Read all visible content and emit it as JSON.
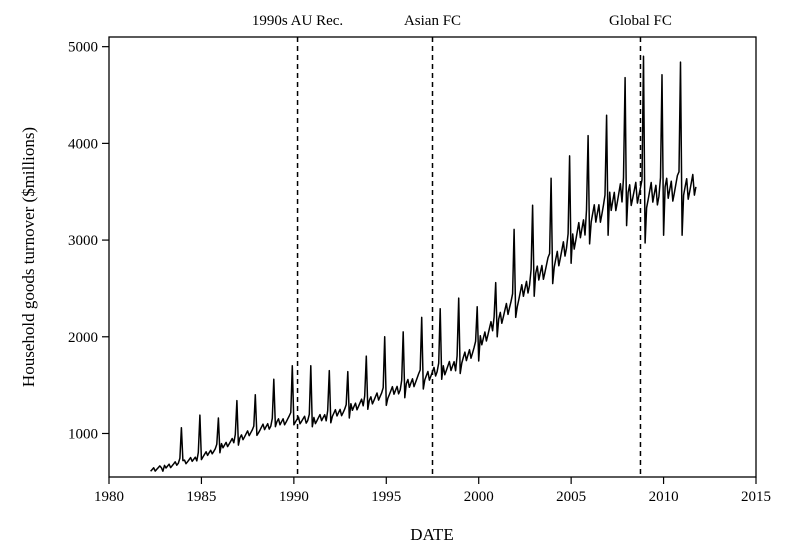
{
  "chart_data": {
    "type": "line",
    "title": "",
    "xlabel": "DATE",
    "ylabel": "Household goods turnover ($millions)",
    "xlim": [
      1980,
      2015
    ],
    "ylim": [
      550,
      5100
    ],
    "xticks": [
      1980,
      1985,
      1990,
      1995,
      2000,
      2005,
      2010,
      2015
    ],
    "xtick_labels": [
      "1980",
      "1985",
      "1990",
      "1995",
      "2000",
      "2005",
      "2010",
      "2015"
    ],
    "yticks": [
      1000,
      2000,
      3000,
      4000,
      5000
    ],
    "ytick_labels": [
      "1000",
      "2000",
      "3000",
      "4000",
      "5000"
    ],
    "grid": false,
    "legend": "none",
    "line_color": "#000000",
    "event_lines": [
      {
        "label": "1990s AU Rec.",
        "x": 1990.2
      },
      {
        "label": "Asian FC",
        "x": 1997.5
      },
      {
        "label": "Global FC",
        "x": 2008.75
      }
    ],
    "series": [
      {
        "start_year": 1982,
        "start_month": 4,
        "frequency": "monthly",
        "annual_level": [
          610,
          650,
          700,
          750,
          850,
          940,
          1030,
          1100,
          1150,
          1130,
          1180,
          1250,
          1330,
          1400,
          1480,
          1580,
          1650,
          1720,
          1900,
          2150,
          2350,
          2600,
          2750,
          2950,
          3200,
          3350,
          3500,
          3450,
          3500,
          3550
        ],
        "december_peak": [
          610,
          1060,
          1190,
          1160,
          1340,
          1400,
          1560,
          1700,
          1700,
          1650,
          1640,
          1800,
          2000,
          2050,
          2200,
          2290,
          2400,
          2310,
          2560,
          3110,
          3360,
          3640,
          3870,
          4080,
          4290,
          4680,
          4900,
          4710,
          4840,
          3600
        ],
        "january_value": [
          600,
          670,
          720,
          730,
          800,
          880,
          980,
          1070,
          1090,
          1070,
          1110,
          1160,
          1250,
          1290,
          1370,
          1460,
          1560,
          1620,
          1750,
          2000,
          2200,
          2420,
          2550,
          2760,
          2960,
          3050,
          3150,
          2970,
          3050,
          3050
        ]
      }
    ]
  }
}
